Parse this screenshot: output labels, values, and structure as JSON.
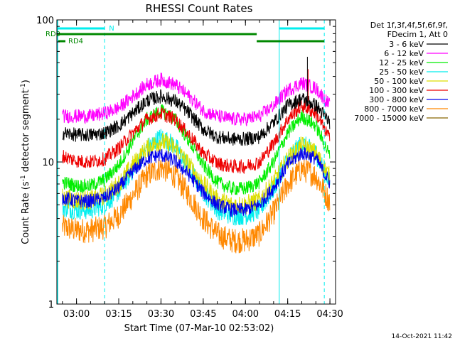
{
  "chart_data": {
    "type": "line",
    "title": "RHESSI Count Rates",
    "xlabel": "Start Time (07-Mar-10 02:53:02)",
    "ylabel_main": "Count Rate (s",
    "ylabel_sup1": "-1",
    "ylabel_mid": " detector segment",
    "ylabel_sup2": "-1",
    "ylabel_end": ")",
    "y_scale": "log",
    "ylim": [
      1,
      100
    ],
    "xlim": [
      "02:53:02",
      "04:32:00"
    ],
    "x_ticks": [
      "03:00",
      "03:15",
      "03:30",
      "03:45",
      "04:00",
      "04:15",
      "04:30"
    ],
    "y_ticks": [
      "1",
      "10",
      "100"
    ],
    "legend_header_1": "Det 1f,3f,4f,5f,6f,9f,",
    "legend_header_2": "FDecim 1, Att 0",
    "legend_position": "right",
    "grid": false,
    "x_hours": [
      3.0,
      3.25,
      3.5,
      3.75,
      4.0,
      4.25,
      4.5
    ],
    "series": [
      {
        "name": "3 - 6 keV",
        "color": "#000000",
        "x": [
          "02:55",
          "03:00",
          "03:05",
          "03:10",
          "03:15",
          "03:20",
          "03:25",
          "03:30",
          "03:35",
          "03:40",
          "03:45",
          "03:50",
          "03:55",
          "04:00",
          "04:05",
          "04:10",
          "04:15",
          "04:20",
          "04:25",
          "04:30"
        ],
        "values": [
          16,
          15.5,
          15.5,
          16,
          18,
          22,
          27,
          29,
          27,
          22,
          17,
          15,
          14.5,
          14.5,
          15,
          19,
          25,
          28,
          25,
          19
        ]
      },
      {
        "name": "6 - 12 keV",
        "color": "#ff00ff",
        "x": [
          "02:55",
          "03:00",
          "03:05",
          "03:10",
          "03:15",
          "03:20",
          "03:25",
          "03:30",
          "03:35",
          "03:40",
          "03:45",
          "03:50",
          "03:55",
          "04:00",
          "04:05",
          "04:10",
          "04:15",
          "04:20",
          "04:25",
          "04:30"
        ],
        "values": [
          21,
          21,
          21,
          22,
          24,
          29,
          35,
          38,
          35,
          29,
          23,
          21,
          20,
          20,
          21,
          25,
          32,
          36,
          33,
          25
        ]
      },
      {
        "name": "12 - 25 keV",
        "color": "#00ee00",
        "x": [
          "02:55",
          "03:00",
          "03:05",
          "03:10",
          "03:15",
          "03:20",
          "03:25",
          "03:30",
          "03:35",
          "03:40",
          "03:45",
          "03:50",
          "03:55",
          "04:00",
          "04:05",
          "04:10",
          "04:15",
          "04:20",
          "04:25",
          "04:30"
        ],
        "values": [
          7.2,
          6.8,
          6.8,
          7.5,
          9.5,
          14,
          20,
          23,
          20,
          14,
          9.5,
          7.2,
          6.5,
          6.5,
          7.2,
          10,
          16,
          21,
          18,
          11
        ]
      },
      {
        "name": "25 - 50 keV",
        "color": "#00eeee",
        "x": [
          "02:55",
          "03:00",
          "03:05",
          "03:10",
          "03:15",
          "03:20",
          "03:25",
          "03:30",
          "03:35",
          "03:40",
          "03:45",
          "03:50",
          "03:55",
          "04:00",
          "04:05",
          "04:10",
          "04:15",
          "04:20",
          "04:25",
          "04:30"
        ],
        "values": [
          4.8,
          4.6,
          4.6,
          5,
          6.2,
          8.8,
          12.5,
          15,
          13,
          9,
          6.2,
          4.6,
          4.2,
          4.2,
          4.6,
          6.5,
          10.5,
          13.5,
          11.5,
          7.2
        ]
      },
      {
        "name": "50 - 100 keV",
        "color": "#dddd00",
        "x": [
          "02:55",
          "03:00",
          "03:05",
          "03:10",
          "03:15",
          "03:20",
          "03:25",
          "03:30",
          "03:35",
          "03:40",
          "03:45",
          "03:50",
          "03:55",
          "04:00",
          "04:05",
          "04:10",
          "04:15",
          "04:20",
          "04:25",
          "04:30"
        ],
        "values": [
          5.6,
          5.4,
          5.4,
          5.8,
          7,
          9.5,
          12.5,
          14,
          12.5,
          9.5,
          7,
          5.4,
          5,
          5,
          5.4,
          7.2,
          10.5,
          13,
          11.5,
          7.8
        ]
      },
      {
        "name": "100 - 300 keV",
        "color": "#ee0000",
        "x": [
          "02:55",
          "03:00",
          "03:05",
          "03:10",
          "03:15",
          "03:20",
          "03:25",
          "03:30",
          "03:35",
          "03:40",
          "03:45",
          "03:50",
          "03:55",
          "04:00",
          "04:05",
          "04:10",
          "04:15",
          "04:20",
          "04:25",
          "04:30"
        ],
        "values": [
          11,
          10.2,
          10,
          10.5,
          12.5,
          16,
          20,
          22,
          20,
          15.5,
          11.5,
          9.8,
          9.3,
          9.3,
          10,
          13.5,
          20,
          25,
          22,
          14.5
        ]
      },
      {
        "name": "300 - 800 keV",
        "color": "#0000ee",
        "x": [
          "02:55",
          "03:00",
          "03:05",
          "03:10",
          "03:15",
          "03:20",
          "03:25",
          "03:30",
          "03:35",
          "03:40",
          "03:45",
          "03:50",
          "03:55",
          "04:00",
          "04:05",
          "04:10",
          "04:15",
          "04:20",
          "04:25",
          "04:30"
        ],
        "values": [
          5.6,
          5.3,
          5.3,
          5.6,
          6.6,
          8.6,
          10.6,
          11.2,
          10.2,
          8.1,
          6.1,
          5,
          4.6,
          4.6,
          5,
          6.6,
          9.6,
          11.6,
          10.6,
          7.1
        ]
      },
      {
        "name": "800 - 7000 keV",
        "color": "#ff8800",
        "x": [
          "02:55",
          "03:00",
          "03:05",
          "03:10",
          "03:15",
          "03:20",
          "03:25",
          "03:30",
          "03:35",
          "03:40",
          "03:45",
          "03:50",
          "03:55",
          "04:00",
          "04:05",
          "04:10",
          "04:15",
          "04:20",
          "04:25",
          "04:30"
        ],
        "values": [
          3.5,
          3.3,
          3.3,
          3.5,
          4.2,
          5.8,
          8,
          9.2,
          8,
          5.8,
          4,
          3.1,
          2.8,
          2.8,
          3.1,
          4.4,
          7,
          9,
          8,
          5.2
        ]
      },
      {
        "name": "7000 - 15000 keV",
        "color": "#886600",
        "x": [],
        "values": []
      }
    ],
    "annotations": {
      "rd0_label": "RD0",
      "rd4_label": "RD4",
      "n_label": "N"
    },
    "timestamp": "14-Oct-2021 11:42"
  }
}
